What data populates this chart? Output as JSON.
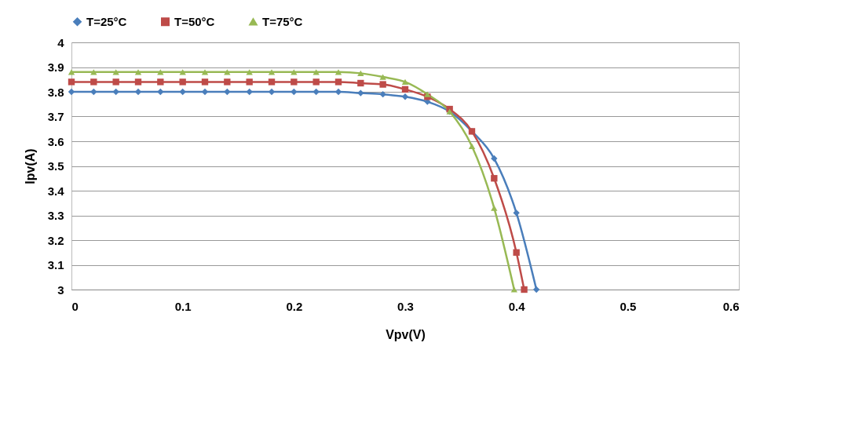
{
  "chart_data": {
    "type": "line",
    "xlabel": "Vpv(V)",
    "ylabel": "Ipv(A)",
    "xlim": [
      0,
      0.6
    ],
    "xticks": [
      0,
      0.1,
      0.2,
      0.3,
      0.4,
      0.5,
      0.6
    ],
    "ylim": [
      3,
      4
    ],
    "yticks": [
      3,
      3.1,
      3.2,
      3.3,
      3.4,
      3.5,
      3.6,
      3.7,
      3.8,
      3.9,
      4
    ],
    "grid": "y",
    "legend": "top",
    "series": [
      {
        "name": "T=25°C",
        "color": "#4a7ebb",
        "marker": "diamond",
        "x": [
          0,
          0.02,
          0.04,
          0.06,
          0.08,
          0.1,
          0.12,
          0.14,
          0.16,
          0.18,
          0.2,
          0.22,
          0.24,
          0.26,
          0.28,
          0.3,
          0.32,
          0.34,
          0.36,
          0.38,
          0.4,
          0.418
        ],
        "values": [
          3.8,
          3.8,
          3.8,
          3.8,
          3.8,
          3.8,
          3.8,
          3.8,
          3.8,
          3.8,
          3.8,
          3.8,
          3.8,
          3.795,
          3.79,
          3.78,
          3.76,
          3.72,
          3.64,
          3.53,
          3.31,
          3.0
        ]
      },
      {
        "name": "T=50°C",
        "color": "#be4b48",
        "marker": "square",
        "x": [
          0,
          0.02,
          0.04,
          0.06,
          0.08,
          0.1,
          0.12,
          0.14,
          0.16,
          0.18,
          0.2,
          0.22,
          0.24,
          0.26,
          0.28,
          0.3,
          0.32,
          0.34,
          0.36,
          0.38,
          0.4,
          0.407
        ],
        "values": [
          3.84,
          3.84,
          3.84,
          3.84,
          3.84,
          3.84,
          3.84,
          3.84,
          3.84,
          3.84,
          3.84,
          3.84,
          3.84,
          3.835,
          3.83,
          3.81,
          3.78,
          3.73,
          3.64,
          3.45,
          3.15,
          3.0
        ]
      },
      {
        "name": "T=75°C",
        "color": "#98b954",
        "marker": "triangle",
        "x": [
          0,
          0.02,
          0.04,
          0.06,
          0.08,
          0.1,
          0.12,
          0.14,
          0.16,
          0.18,
          0.2,
          0.22,
          0.24,
          0.26,
          0.28,
          0.3,
          0.32,
          0.34,
          0.36,
          0.38,
          0.398
        ],
        "values": [
          3.88,
          3.88,
          3.88,
          3.88,
          3.88,
          3.88,
          3.88,
          3.88,
          3.88,
          3.88,
          3.88,
          3.88,
          3.88,
          3.875,
          3.86,
          3.84,
          3.79,
          3.72,
          3.58,
          3.33,
          3.0
        ]
      }
    ]
  }
}
